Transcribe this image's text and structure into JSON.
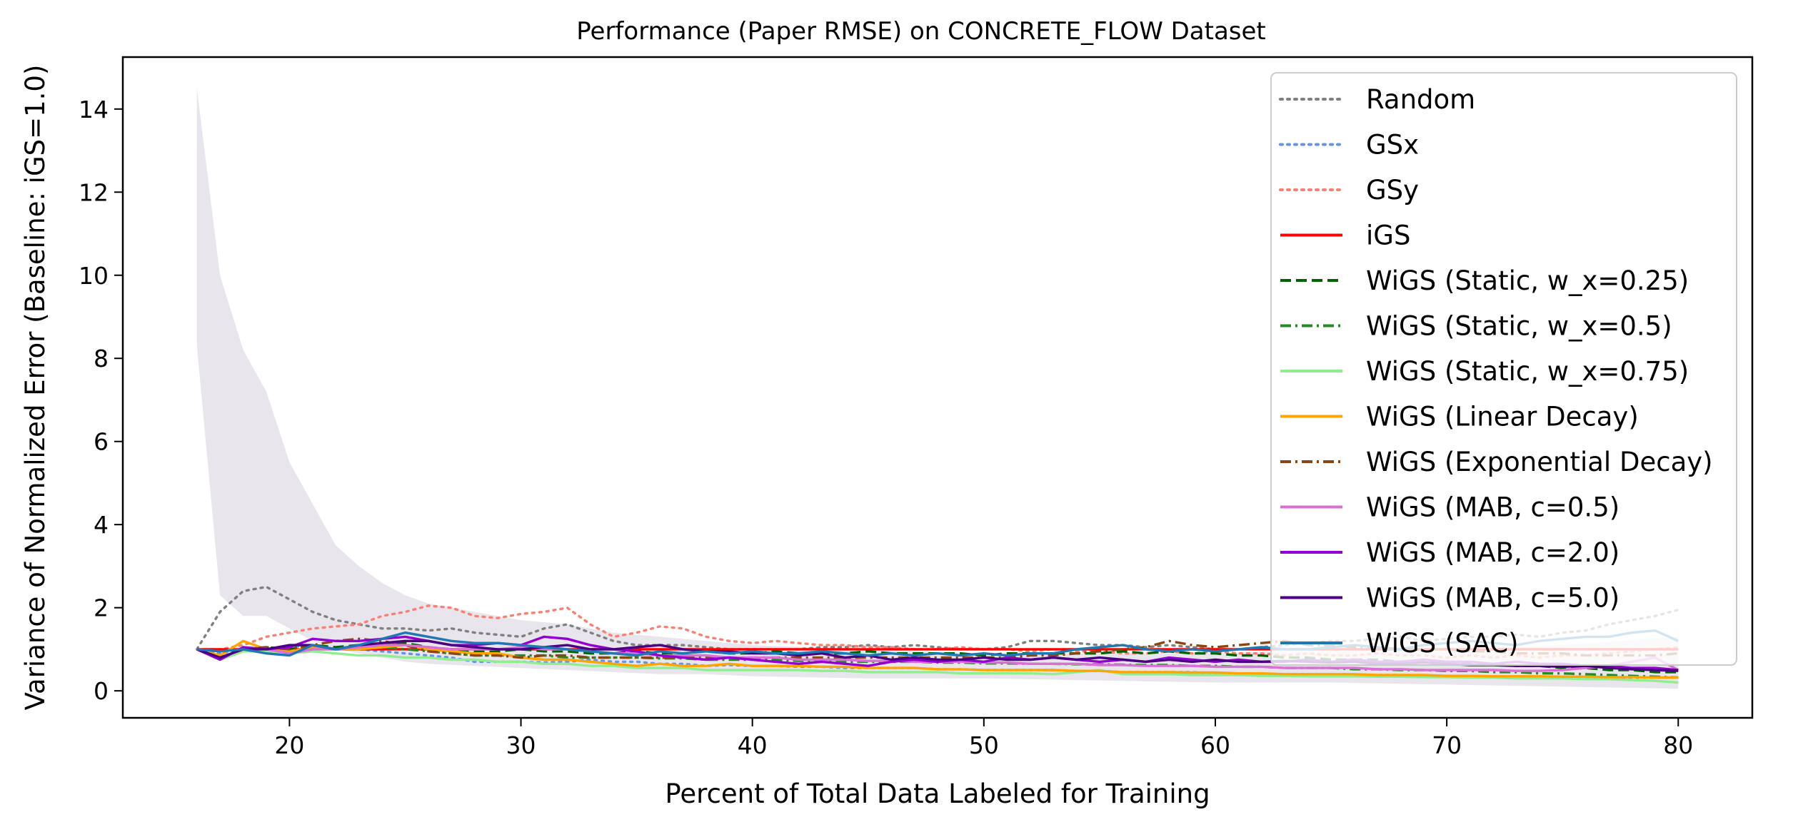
{
  "chart_data": {
    "type": "line",
    "title": "Performance (Paper RMSE) on CONCRETE_FLOW Dataset",
    "xlabel": "Percent of Total Data Labeled for Training",
    "ylabel": "Variance of Normalized Error (Baseline: iGS=1.0)",
    "xlim": [
      12.8,
      83.2
    ],
    "ylim": [
      -0.65,
      15.25
    ],
    "xticks": [
      20,
      30,
      40,
      50,
      60,
      70,
      80
    ],
    "yticks": [
      0,
      2,
      4,
      6,
      8,
      10,
      12,
      14
    ],
    "grid": false,
    "legend_position": "top-right",
    "x": [
      16,
      17,
      18,
      19,
      20,
      21,
      22,
      23,
      24,
      25,
      26,
      27,
      28,
      29,
      30,
      31,
      32,
      33,
      34,
      35,
      36,
      37,
      38,
      39,
      40,
      41,
      42,
      43,
      44,
      45,
      46,
      47,
      48,
      49,
      50,
      51,
      52,
      53,
      54,
      55,
      56,
      57,
      58,
      59,
      60,
      61,
      62,
      63,
      64,
      65,
      66,
      67,
      68,
      69,
      70,
      71,
      72,
      73,
      74,
      75,
      76,
      77,
      78,
      79,
      80
    ],
    "band": {
      "x": [
        16,
        17,
        18,
        19,
        20,
        21,
        22,
        23,
        24,
        25,
        26,
        28,
        30,
        32,
        34,
        36,
        38,
        40,
        45,
        50,
        55,
        60,
        65,
        70,
        75,
        80
      ],
      "lower": [
        8.3,
        2.3,
        1.8,
        1.8,
        1.5,
        1.2,
        1.0,
        0.9,
        0.8,
        0.7,
        0.65,
        0.6,
        0.55,
        0.5,
        0.45,
        0.4,
        0.4,
        0.35,
        0.3,
        0.3,
        0.25,
        0.2,
        0.2,
        0.15,
        0.1,
        0.05
      ],
      "upper": [
        14.5,
        10.0,
        8.2,
        7.2,
        5.5,
        4.5,
        3.5,
        3.0,
        2.6,
        2.3,
        2.1,
        1.9,
        1.7,
        1.6,
        1.4,
        1.3,
        1.2,
        1.1,
        1.0,
        0.9,
        0.9,
        0.9,
        1.0,
        1.0,
        1.1,
        1.3
      ]
    },
    "series": [
      {
        "name": "Random",
        "color": "#808080",
        "dash": "dotted",
        "values": [
          1.0,
          1.9,
          2.4,
          2.5,
          2.2,
          1.9,
          1.7,
          1.6,
          1.5,
          1.5,
          1.45,
          1.5,
          1.4,
          1.35,
          1.3,
          1.5,
          1.6,
          1.4,
          1.2,
          1.1,
          1.1,
          1.1,
          1.05,
          1.0,
          1.0,
          1.0,
          1.0,
          1.05,
          1.05,
          1.1,
          1.05,
          1.1,
          1.05,
          1.0,
          1.0,
          1.05,
          1.2,
          1.2,
          1.15,
          1.1,
          1.1,
          1.05,
          1.1,
          1.05,
          1.0,
          1.0,
          1.05,
          1.1,
          1.15,
          1.2,
          1.2,
          1.25,
          1.3,
          1.2,
          1.25,
          1.3,
          1.3,
          1.35,
          1.3,
          1.4,
          1.45,
          1.6,
          1.7,
          1.8,
          1.95
        ]
      },
      {
        "name": "GSx",
        "color": "#6495ed",
        "dash": "dotted",
        "values": [
          1.0,
          0.9,
          1.0,
          1.0,
          1.05,
          1.1,
          1.0,
          1.0,
          0.95,
          0.9,
          0.85,
          0.8,
          0.7,
          0.7,
          0.7,
          0.68,
          0.7,
          0.75,
          0.7,
          0.7,
          0.65,
          0.65,
          0.6,
          0.62,
          0.6,
          0.6,
          0.58,
          0.58,
          0.55,
          0.55,
          0.55,
          0.55,
          0.52,
          0.52,
          0.5,
          0.5,
          0.5,
          0.5,
          0.48,
          0.48,
          0.45,
          0.45,
          0.45,
          0.45,
          0.42,
          0.42,
          0.4,
          0.4,
          0.4,
          0.38,
          0.38,
          0.38,
          0.38,
          0.36,
          0.36,
          0.35,
          0.35,
          0.35,
          0.34,
          0.34,
          0.33,
          0.33,
          0.32,
          0.32,
          0.32
        ]
      },
      {
        "name": "GSy",
        "color": "#fa8072",
        "dash": "dotted",
        "values": [
          1.0,
          1.0,
          1.1,
          1.3,
          1.4,
          1.5,
          1.55,
          1.6,
          1.8,
          1.9,
          2.05,
          2.0,
          1.8,
          1.75,
          1.85,
          1.9,
          2.0,
          1.6,
          1.3,
          1.4,
          1.55,
          1.5,
          1.3,
          1.2,
          1.15,
          1.2,
          1.15,
          1.1,
          1.1,
          1.05,
          1.05,
          1.0,
          1.0,
          1.05,
          1.0,
          1.0,
          0.95,
          1.0,
          0.95,
          0.95,
          0.9,
          0.9,
          0.95,
          0.9,
          0.95,
          0.9,
          0.9,
          0.85,
          0.9,
          0.85,
          0.85,
          0.9,
          0.85,
          0.85,
          0.8,
          0.85,
          0.8,
          0.85,
          0.8,
          0.85,
          0.85,
          0.9,
          0.95,
          1.0,
          1.05
        ]
      },
      {
        "name": "iGS",
        "color": "#ff0000",
        "dash": "solid",
        "values": [
          1.0,
          1.0,
          1.0,
          1.0,
          1.0,
          1.0,
          1.0,
          1.0,
          1.0,
          1.0,
          1.0,
          1.0,
          1.0,
          1.0,
          1.0,
          1.0,
          1.0,
          1.0,
          1.0,
          1.0,
          1.0,
          1.0,
          1.0,
          1.0,
          1.0,
          1.0,
          1.0,
          1.0,
          1.0,
          1.0,
          1.0,
          1.0,
          1.0,
          1.0,
          1.0,
          1.0,
          1.0,
          1.0,
          1.0,
          1.0,
          1.0,
          1.0,
          1.0,
          1.0,
          1.0,
          1.0,
          1.0,
          1.0,
          1.0,
          1.0,
          1.0,
          1.0,
          1.0,
          1.0,
          1.0,
          1.0,
          1.0,
          1.0,
          1.0,
          1.0,
          1.0,
          1.0,
          1.0,
          1.0,
          1.0
        ]
      },
      {
        "name": "WiGS (Static, w_x=0.25)",
        "color": "#006400",
        "dash": "dashed",
        "values": [
          1.0,
          0.75,
          1.0,
          1.05,
          1.0,
          1.1,
          1.05,
          1.1,
          1.1,
          1.15,
          1.05,
          1.0,
          0.95,
          0.95,
          1.0,
          0.95,
          0.95,
          0.9,
          0.9,
          0.95,
          0.9,
          0.9,
          0.95,
          0.9,
          0.9,
          0.95,
          0.9,
          0.9,
          0.9,
          0.95,
          0.9,
          0.9,
          0.9,
          0.9,
          0.85,
          0.9,
          0.9,
          0.9,
          0.9,
          0.9,
          0.95,
          0.9,
          0.95,
          0.9,
          0.9,
          0.85,
          0.85,
          0.8,
          0.8,
          0.75,
          0.75,
          0.75,
          0.7,
          0.7,
          0.7,
          0.65,
          0.65,
          0.6,
          0.6,
          0.55,
          0.55,
          0.5,
          0.5,
          0.45,
          0.45
        ]
      },
      {
        "name": "WiGS (Static, w_x=0.5)",
        "color": "#228b22",
        "dash": "dashdot",
        "values": [
          1.0,
          0.8,
          1.0,
          1.0,
          1.05,
          1.05,
          1.0,
          1.0,
          1.05,
          1.0,
          0.95,
          0.9,
          0.85,
          0.85,
          0.85,
          0.85,
          0.8,
          0.8,
          0.8,
          0.8,
          0.78,
          0.78,
          0.75,
          0.75,
          0.75,
          0.75,
          0.72,
          0.72,
          0.7,
          0.7,
          0.7,
          0.7,
          0.68,
          0.68,
          0.66,
          0.66,
          0.65,
          0.65,
          0.64,
          0.64,
          0.63,
          0.62,
          0.62,
          0.6,
          0.6,
          0.58,
          0.58,
          0.55,
          0.55,
          0.55,
          0.52,
          0.52,
          0.5,
          0.5,
          0.48,
          0.48,
          0.45,
          0.45,
          0.42,
          0.42,
          0.4,
          0.38,
          0.36,
          0.34,
          0.32
        ]
      },
      {
        "name": "WiGS (Static, w_x=0.75)",
        "color": "#90ee90",
        "dash": "solid",
        "values": [
          1.0,
          0.75,
          0.95,
          0.95,
          0.9,
          0.95,
          0.9,
          0.85,
          0.85,
          0.8,
          0.8,
          0.75,
          0.75,
          0.7,
          0.7,
          0.65,
          0.65,
          0.6,
          0.6,
          0.55,
          0.55,
          0.55,
          0.5,
          0.5,
          0.5,
          0.5,
          0.5,
          0.48,
          0.48,
          0.45,
          0.45,
          0.45,
          0.45,
          0.42,
          0.42,
          0.42,
          0.42,
          0.4,
          0.45,
          0.5,
          0.4,
          0.4,
          0.4,
          0.38,
          0.38,
          0.38,
          0.36,
          0.36,
          0.35,
          0.35,
          0.35,
          0.34,
          0.34,
          0.33,
          0.33,
          0.32,
          0.32,
          0.3,
          0.3,
          0.3,
          0.28,
          0.28,
          0.26,
          0.24,
          0.2
        ]
      },
      {
        "name": "WiGS (Linear Decay)",
        "color": "#ffa500",
        "dash": "solid",
        "values": [
          1.0,
          0.85,
          1.2,
          1.0,
          0.95,
          1.05,
          1.0,
          1.0,
          1.05,
          1.1,
          1.0,
          0.95,
          0.9,
          0.9,
          0.8,
          0.75,
          0.75,
          0.7,
          0.65,
          0.6,
          0.65,
          0.6,
          0.6,
          0.65,
          0.6,
          0.6,
          0.6,
          0.58,
          0.58,
          0.55,
          0.55,
          0.55,
          0.52,
          0.52,
          0.5,
          0.5,
          0.5,
          0.5,
          0.48,
          0.48,
          0.45,
          0.45,
          0.45,
          0.44,
          0.44,
          0.42,
          0.42,
          0.4,
          0.4,
          0.4,
          0.4,
          0.38,
          0.38,
          0.38,
          0.36,
          0.36,
          0.35,
          0.35,
          0.35,
          0.34,
          0.34,
          0.33,
          0.33,
          0.32,
          0.32
        ]
      },
      {
        "name": "WiGS (Exponential Decay)",
        "color": "#8b4513",
        "dash": "dashdot",
        "values": [
          1.0,
          0.8,
          1.0,
          1.05,
          1.0,
          1.1,
          1.2,
          1.25,
          1.2,
          1.1,
          0.95,
          0.9,
          0.85,
          0.85,
          0.8,
          0.85,
          0.85,
          0.8,
          0.8,
          0.8,
          0.8,
          0.8,
          0.8,
          0.8,
          0.8,
          0.8,
          0.8,
          0.8,
          0.8,
          0.8,
          0.8,
          0.8,
          0.8,
          0.8,
          0.8,
          0.8,
          0.85,
          0.85,
          0.9,
          0.95,
          1.0,
          1.05,
          1.2,
          1.1,
          1.05,
          1.1,
          1.15,
          1.2,
          1.1,
          1.1,
          1.05,
          1.05,
          1.0,
          1.0,
          1.0,
          0.95,
          0.95,
          0.9,
          0.9,
          0.9,
          0.85,
          0.85,
          0.85,
          0.85,
          0.9
        ]
      },
      {
        "name": "WiGS (MAB, c=0.5)",
        "color": "#da70d6",
        "dash": "solid",
        "values": [
          1.0,
          0.8,
          1.0,
          1.0,
          0.9,
          1.0,
          1.0,
          1.05,
          1.1,
          1.1,
          1.05,
          1.0,
          1.0,
          1.0,
          1.05,
          1.0,
          1.0,
          0.95,
          0.9,
          0.9,
          0.85,
          0.85,
          0.85,
          0.8,
          0.8,
          0.8,
          0.75,
          0.75,
          0.75,
          0.72,
          0.72,
          0.7,
          0.7,
          0.7,
          0.68,
          0.68,
          0.65,
          0.65,
          0.65,
          0.62,
          0.62,
          0.6,
          0.6,
          0.6,
          0.58,
          0.58,
          0.58,
          0.55,
          0.55,
          0.55,
          0.55,
          0.52,
          0.52,
          0.5,
          0.5,
          0.5,
          0.5,
          0.48,
          0.48,
          0.5,
          0.55,
          0.6,
          0.7,
          0.8,
          0.5
        ]
      },
      {
        "name": "WiGS (MAB, c=2.0)",
        "color": "#9400d3",
        "dash": "solid",
        "values": [
          1.0,
          0.75,
          1.05,
          1.0,
          1.05,
          1.25,
          1.2,
          1.2,
          1.25,
          1.3,
          1.2,
          1.1,
          1.1,
          1.15,
          1.1,
          1.3,
          1.25,
          1.1,
          1.0,
          0.95,
          0.85,
          0.8,
          0.75,
          0.8,
          0.75,
          0.7,
          0.65,
          0.7,
          0.65,
          0.6,
          0.7,
          0.75,
          0.7,
          0.75,
          0.7,
          0.8,
          0.75,
          0.8,
          0.75,
          0.7,
          0.75,
          0.7,
          0.8,
          0.75,
          0.7,
          0.75,
          0.7,
          0.7,
          0.75,
          0.7,
          0.75,
          0.7,
          0.7,
          0.75,
          0.7,
          0.7,
          0.65,
          0.7,
          0.65,
          0.65,
          0.6,
          0.6,
          0.55,
          0.55,
          0.5
        ]
      },
      {
        "name": "WiGS (MAB, c=5.0)",
        "color": "#4b0082",
        "dash": "solid",
        "values": [
          1.0,
          0.8,
          1.0,
          1.0,
          1.1,
          1.1,
          1.0,
          1.1,
          1.15,
          1.2,
          1.2,
          1.1,
          1.05,
          1.0,
          1.0,
          1.05,
          1.1,
          1.0,
          1.0,
          1.05,
          1.1,
          1.0,
          0.95,
          0.95,
          0.9,
          0.9,
          0.85,
          0.9,
          0.8,
          0.85,
          0.75,
          0.8,
          0.75,
          0.75,
          0.8,
          0.75,
          0.75,
          0.8,
          0.75,
          0.8,
          0.75,
          0.7,
          0.75,
          0.7,
          0.75,
          0.7,
          0.7,
          0.72,
          0.7,
          0.68,
          0.7,
          0.65,
          0.65,
          0.68,
          0.65,
          0.62,
          0.62,
          0.6,
          0.6,
          0.58,
          0.6,
          0.55,
          0.52,
          0.5,
          0.48
        ]
      },
      {
        "name": "WiGS (SAC)",
        "color": "#1f77b4",
        "dash": "solid",
        "values": [
          1.0,
          0.95,
          1.0,
          0.9,
          0.85,
          1.1,
          1.0,
          1.1,
          1.25,
          1.4,
          1.3,
          1.2,
          1.15,
          1.15,
          1.1,
          1.05,
          1.0,
          0.95,
          0.9,
          0.85,
          0.95,
          0.9,
          0.95,
          0.9,
          0.95,
          0.9,
          0.9,
          0.95,
          0.9,
          0.85,
          0.9,
          0.85,
          0.9,
          0.85,
          0.9,
          0.85,
          0.9,
          0.9,
          1.0,
          1.05,
          1.1,
          1.0,
          0.95,
          1.0,
          0.95,
          1.0,
          1.05,
          1.0,
          1.0,
          1.05,
          1.1,
          1.05,
          1.0,
          1.1,
          1.15,
          1.2,
          1.15,
          1.1,
          1.2,
          1.25,
          1.3,
          1.3,
          1.4,
          1.45,
          1.2
        ]
      }
    ]
  }
}
